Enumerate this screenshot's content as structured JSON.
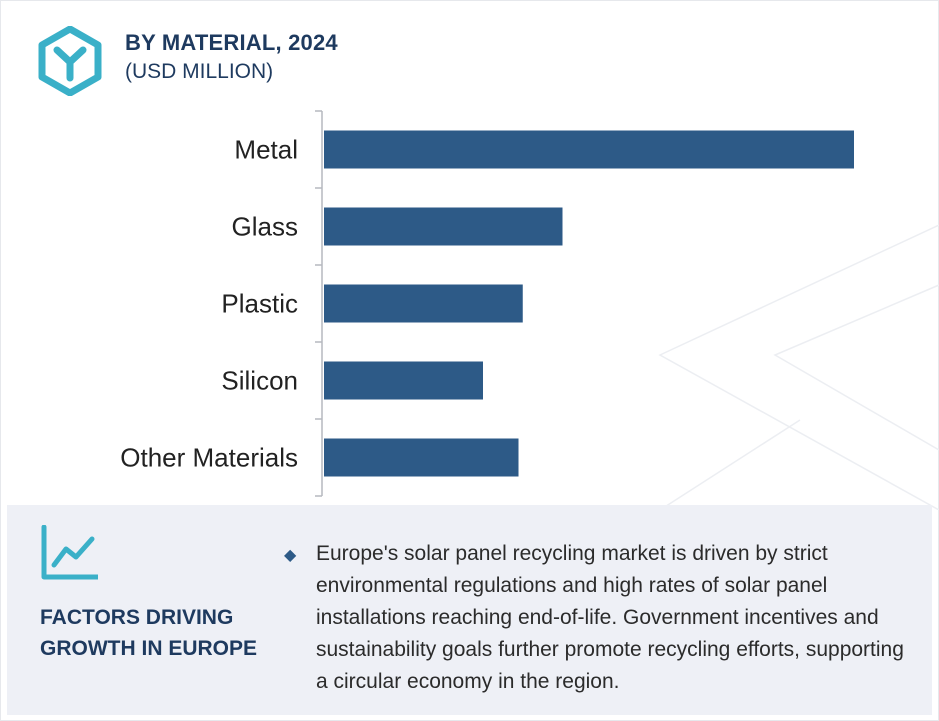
{
  "header": {
    "title": "BY MATERIAL, 2024",
    "subtitle": "(USD MILLION)"
  },
  "colors": {
    "bar": "#2d5a87",
    "accent": "#3ab0c8",
    "title": "#1e3a5f",
    "panel": "#eef0f6"
  },
  "chart_data": {
    "type": "bar",
    "orientation": "horizontal",
    "categories": [
      "Metal",
      "Glass",
      "Plastic",
      "Silicon",
      "Other Materials"
    ],
    "values": [
      100,
      45,
      37.5,
      30,
      36.7
    ],
    "xlim": [
      0,
      100
    ],
    "value_axis_visible": false,
    "grid": false
  },
  "footer": {
    "icon": "trend-line-icon",
    "heading_line1": "FACTORS DRIVING",
    "heading_line2": "GROWTH IN EUROPE",
    "bullet_icon": "diamond-bullet-icon",
    "description": "Europe's solar panel recycling market is driven by strict environmental regulations and high rates of solar panel installations reaching end-of-life. Government incentives and sustainability goals further promote recycling efforts, supporting a circular economy in the region."
  }
}
